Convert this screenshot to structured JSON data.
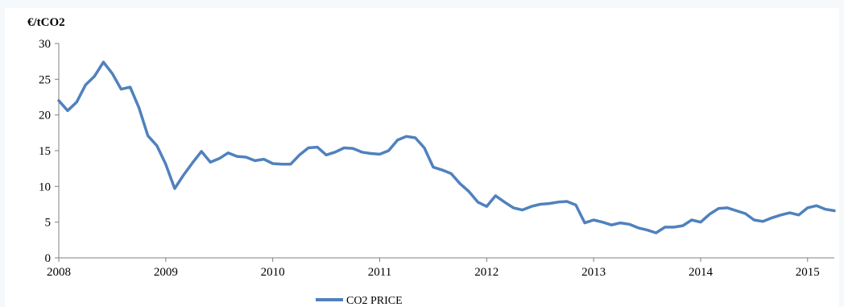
{
  "chart_data": {
    "type": "line",
    "title": "",
    "ylabel": "€/tCO2",
    "xlabel": "",
    "xlim": [
      2008.0,
      2015.25
    ],
    "ylim": [
      0,
      30
    ],
    "y_ticks": [
      0,
      5,
      10,
      15,
      20,
      25,
      30
    ],
    "x_ticks": [
      2008,
      2009,
      2010,
      2011,
      2012,
      2013,
      2014,
      2015
    ],
    "grid": false,
    "legend_position": "bottom",
    "series": [
      {
        "name": "CO2 PRICE",
        "color": "#4f81bd",
        "x": [
          2008.0,
          2008.083,
          2008.167,
          2008.25,
          2008.333,
          2008.417,
          2008.5,
          2008.583,
          2008.667,
          2008.75,
          2008.833,
          2008.917,
          2009.0,
          2009.083,
          2009.167,
          2009.25,
          2009.333,
          2009.417,
          2009.5,
          2009.583,
          2009.667,
          2009.75,
          2009.833,
          2009.917,
          2010.0,
          2010.083,
          2010.167,
          2010.25,
          2010.333,
          2010.417,
          2010.5,
          2010.583,
          2010.667,
          2010.75,
          2010.833,
          2010.917,
          2011.0,
          2011.083,
          2011.167,
          2011.25,
          2011.333,
          2011.417,
          2011.5,
          2011.583,
          2011.667,
          2011.75,
          2011.833,
          2011.917,
          2012.0,
          2012.083,
          2012.167,
          2012.25,
          2012.333,
          2012.417,
          2012.5,
          2012.583,
          2012.667,
          2012.75,
          2012.833,
          2012.917,
          2013.0,
          2013.083,
          2013.167,
          2013.25,
          2013.333,
          2013.417,
          2013.5,
          2013.583,
          2013.667,
          2013.75,
          2013.833,
          2013.917,
          2014.0,
          2014.083,
          2014.167,
          2014.25,
          2014.333,
          2014.417,
          2014.5,
          2014.583,
          2014.667,
          2014.75,
          2014.833,
          2014.917,
          2015.0,
          2015.083,
          2015.167,
          2015.25
        ],
        "y": [
          22.0,
          20.6,
          21.8,
          24.2,
          25.4,
          27.4,
          25.8,
          23.6,
          23.9,
          21.0,
          17.1,
          15.7,
          13.1,
          9.7,
          11.6,
          13.3,
          14.9,
          13.4,
          13.9,
          14.7,
          14.2,
          14.1,
          13.6,
          13.8,
          13.2,
          13.1,
          13.1,
          14.4,
          15.4,
          15.5,
          14.4,
          14.8,
          15.4,
          15.3,
          14.8,
          14.6,
          14.5,
          15.0,
          16.5,
          17.0,
          16.8,
          15.4,
          12.7,
          12.3,
          11.8,
          10.4,
          9.3,
          7.8,
          7.2,
          8.7,
          7.8,
          7.0,
          6.7,
          7.2,
          7.5,
          7.6,
          7.8,
          7.9,
          7.4,
          4.9,
          5.3,
          5.0,
          4.6,
          4.9,
          4.7,
          4.2,
          3.9,
          3.5,
          4.3,
          4.3,
          4.5,
          5.3,
          5.0,
          6.1,
          6.9,
          7.0,
          6.6,
          6.2,
          5.3,
          5.1,
          5.6,
          6.0,
          6.3,
          6.0,
          7.0,
          7.3,
          6.8,
          6.6
        ]
      }
    ]
  }
}
